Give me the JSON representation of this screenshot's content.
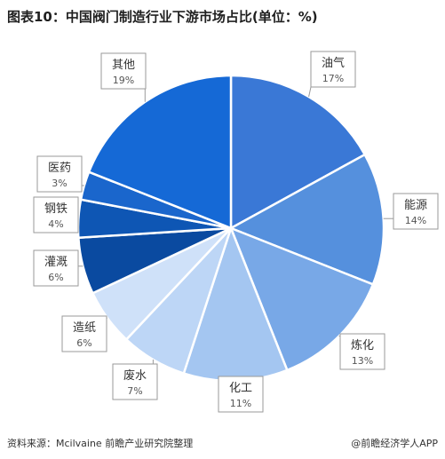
{
  "title": "图表10：中国阀门制造行业下游市场占比(单位：%)",
  "source": "资料来源：Mcilvaine 前瞻产业研究院整理",
  "brand": "@前瞻经济学人APP",
  "chart_data": {
    "type": "pie",
    "unit": "%",
    "slices": [
      {
        "label": "油气",
        "value": 17,
        "display": "17%",
        "color": "#3a78d6"
      },
      {
        "label": "能源",
        "value": 14,
        "display": "14%",
        "color": "#5590dd"
      },
      {
        "label": "炼化",
        "value": 13,
        "display": "13%",
        "color": "#78a8e7"
      },
      {
        "label": "化工",
        "value": 11,
        "display": "11%",
        "color": "#a4c6f1"
      },
      {
        "label": "废水",
        "value": 7,
        "display": "7%",
        "color": "#bdd6f6"
      },
      {
        "label": "造纸",
        "value": 6,
        "display": "6%",
        "color": "#cfe1f9"
      },
      {
        "label": "灌溉",
        "value": 6,
        "display": "6%",
        "color": "#0a4aa0"
      },
      {
        "label": "钢铁",
        "value": 4,
        "display": "4%",
        "color": "#0e56b4"
      },
      {
        "label": "医药",
        "value": 3,
        "display": "3%",
        "color": "#1a66cc"
      },
      {
        "label": "其他",
        "value": 19,
        "display": "19%",
        "color": "#1569d6"
      }
    ]
  }
}
